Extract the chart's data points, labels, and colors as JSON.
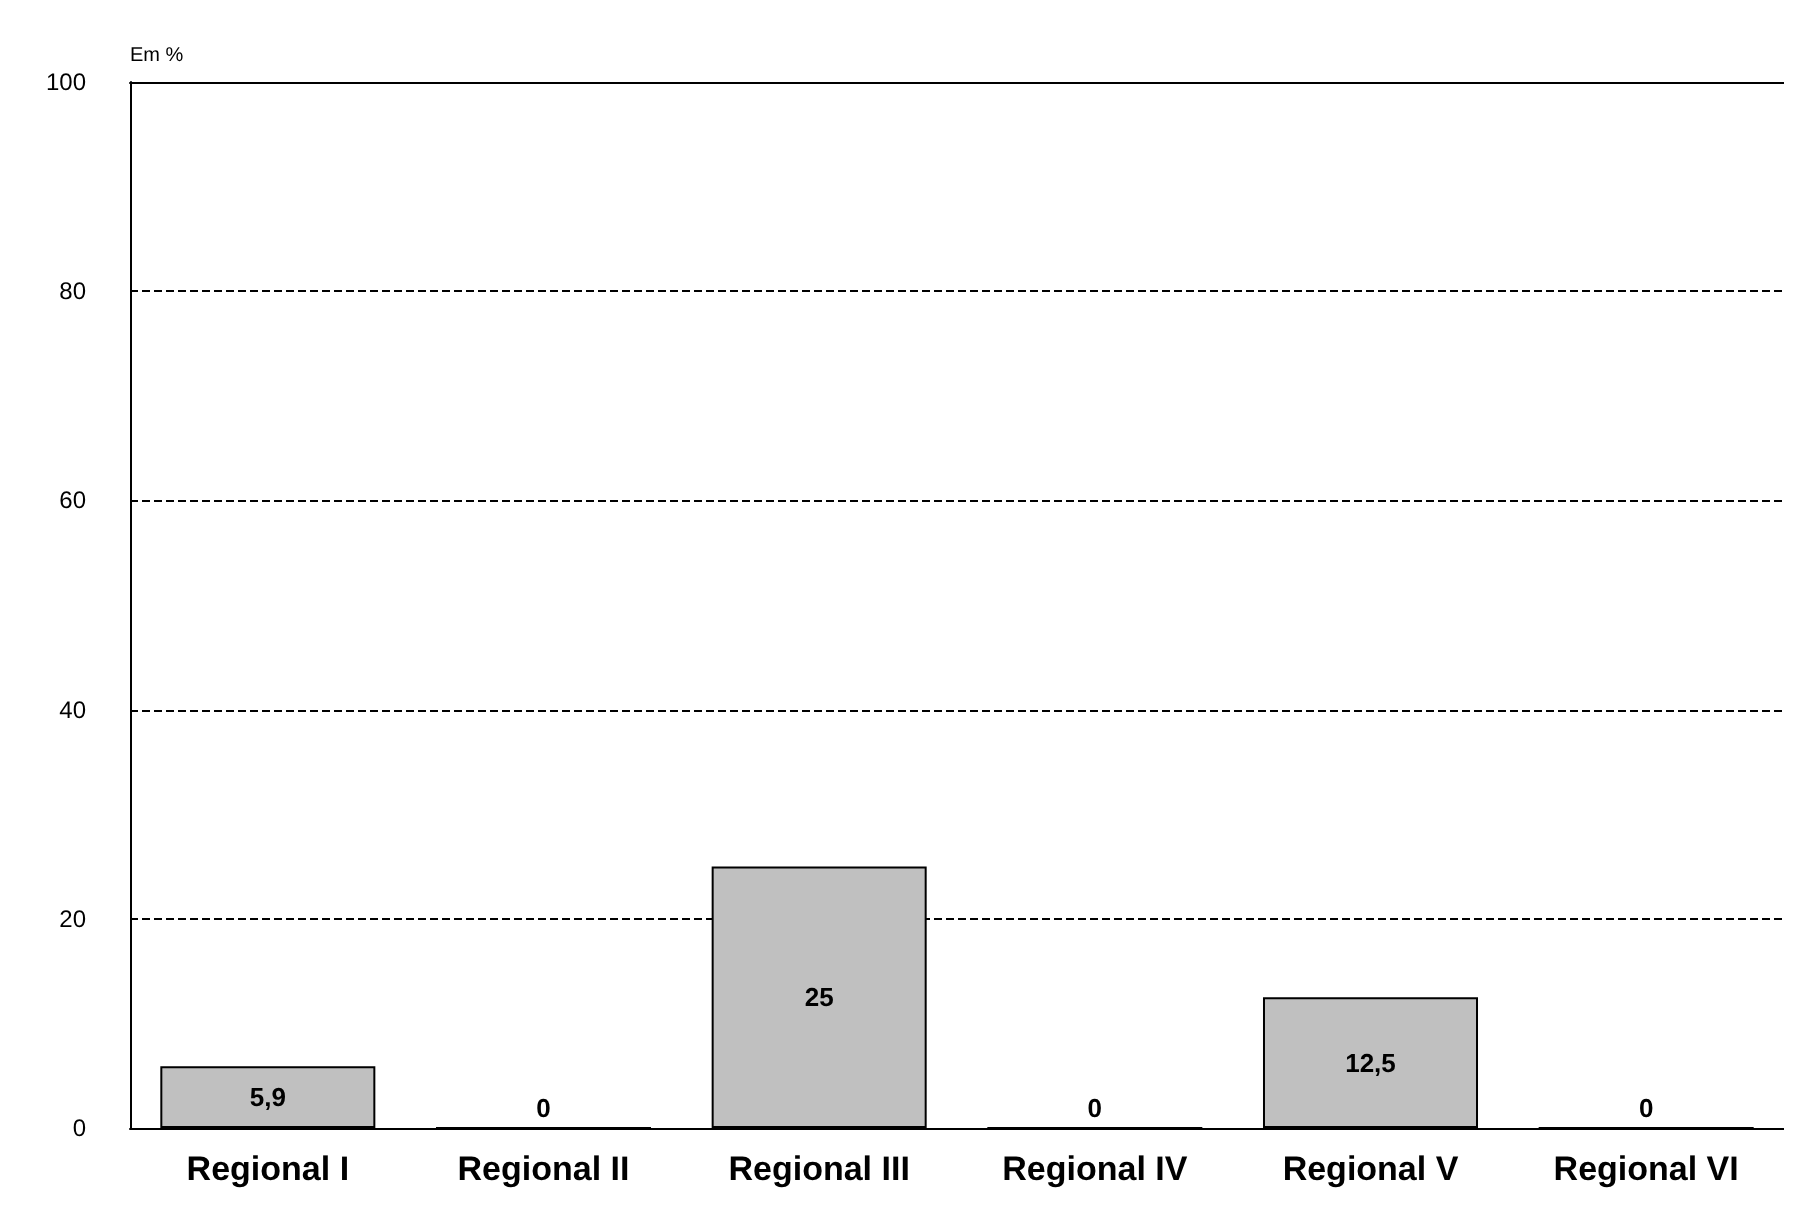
{
  "chart_data": {
    "type": "bar",
    "ylabel": "Em %",
    "categories": [
      "Regional I",
      "Regional II",
      "Regional III",
      "Regional IV",
      "Regional V",
      "Regional VI"
    ],
    "values": [
      5.9,
      0,
      25,
      0,
      12.5,
      0
    ],
    "value_labels": [
      "5,9",
      "0",
      "25",
      "0",
      "12,5",
      "0"
    ],
    "color": "#c0c0c0",
    "ylim": [
      0,
      100
    ],
    "yticks": [
      0,
      20,
      40,
      60,
      80,
      100
    ],
    "grid": "y"
  }
}
